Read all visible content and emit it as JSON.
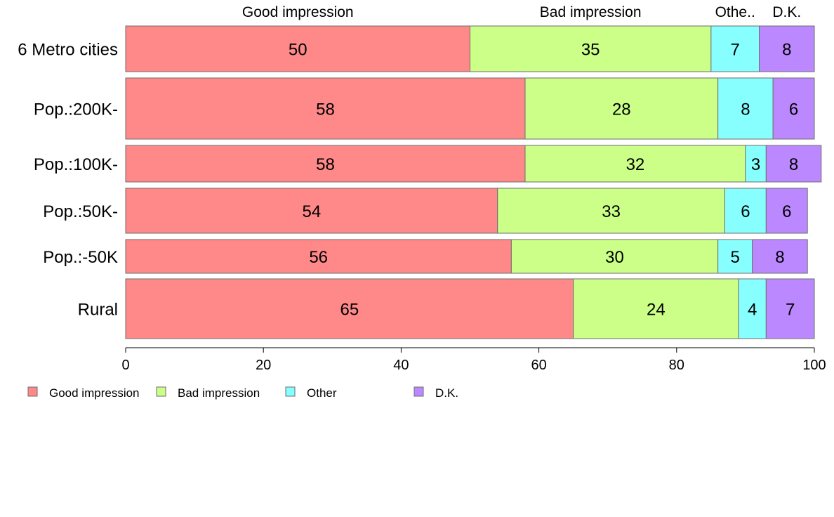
{
  "chart_data": {
    "type": "bar",
    "orientation": "horizontal",
    "stacked": true,
    "categories": [
      "6 Metro cities",
      "Pop.:200K-",
      "Pop.:100K-",
      "Pop.:50K-",
      "Pop.:-50K",
      "Rural"
    ],
    "series": [
      {
        "name": "Good impression",
        "values": [
          50,
          58,
          58,
          54,
          56,
          65
        ],
        "color": "#ff8888"
      },
      {
        "name": "Bad impression",
        "values": [
          35,
          28,
          32,
          33,
          30,
          24
        ],
        "color": "#ccff88"
      },
      {
        "name": "Other",
        "values": [
          7,
          8,
          3,
          6,
          5,
          4
        ],
        "color": "#88ffff"
      },
      {
        "name": "D.K.",
        "values": [
          8,
          6,
          8,
          6,
          8,
          7
        ],
        "color": "#bb88ff"
      }
    ],
    "top_labels": [
      "Good impression",
      "Bad impression",
      "Othe..",
      "D.K."
    ],
    "xlim": [
      0,
      100
    ],
    "xticks": [
      0,
      20,
      40,
      60,
      80,
      100
    ],
    "legend": {
      "position": "bottom-left",
      "labels": [
        "Good impression",
        "Bad impression",
        "Other",
        "D.K."
      ]
    },
    "grid": false
  }
}
